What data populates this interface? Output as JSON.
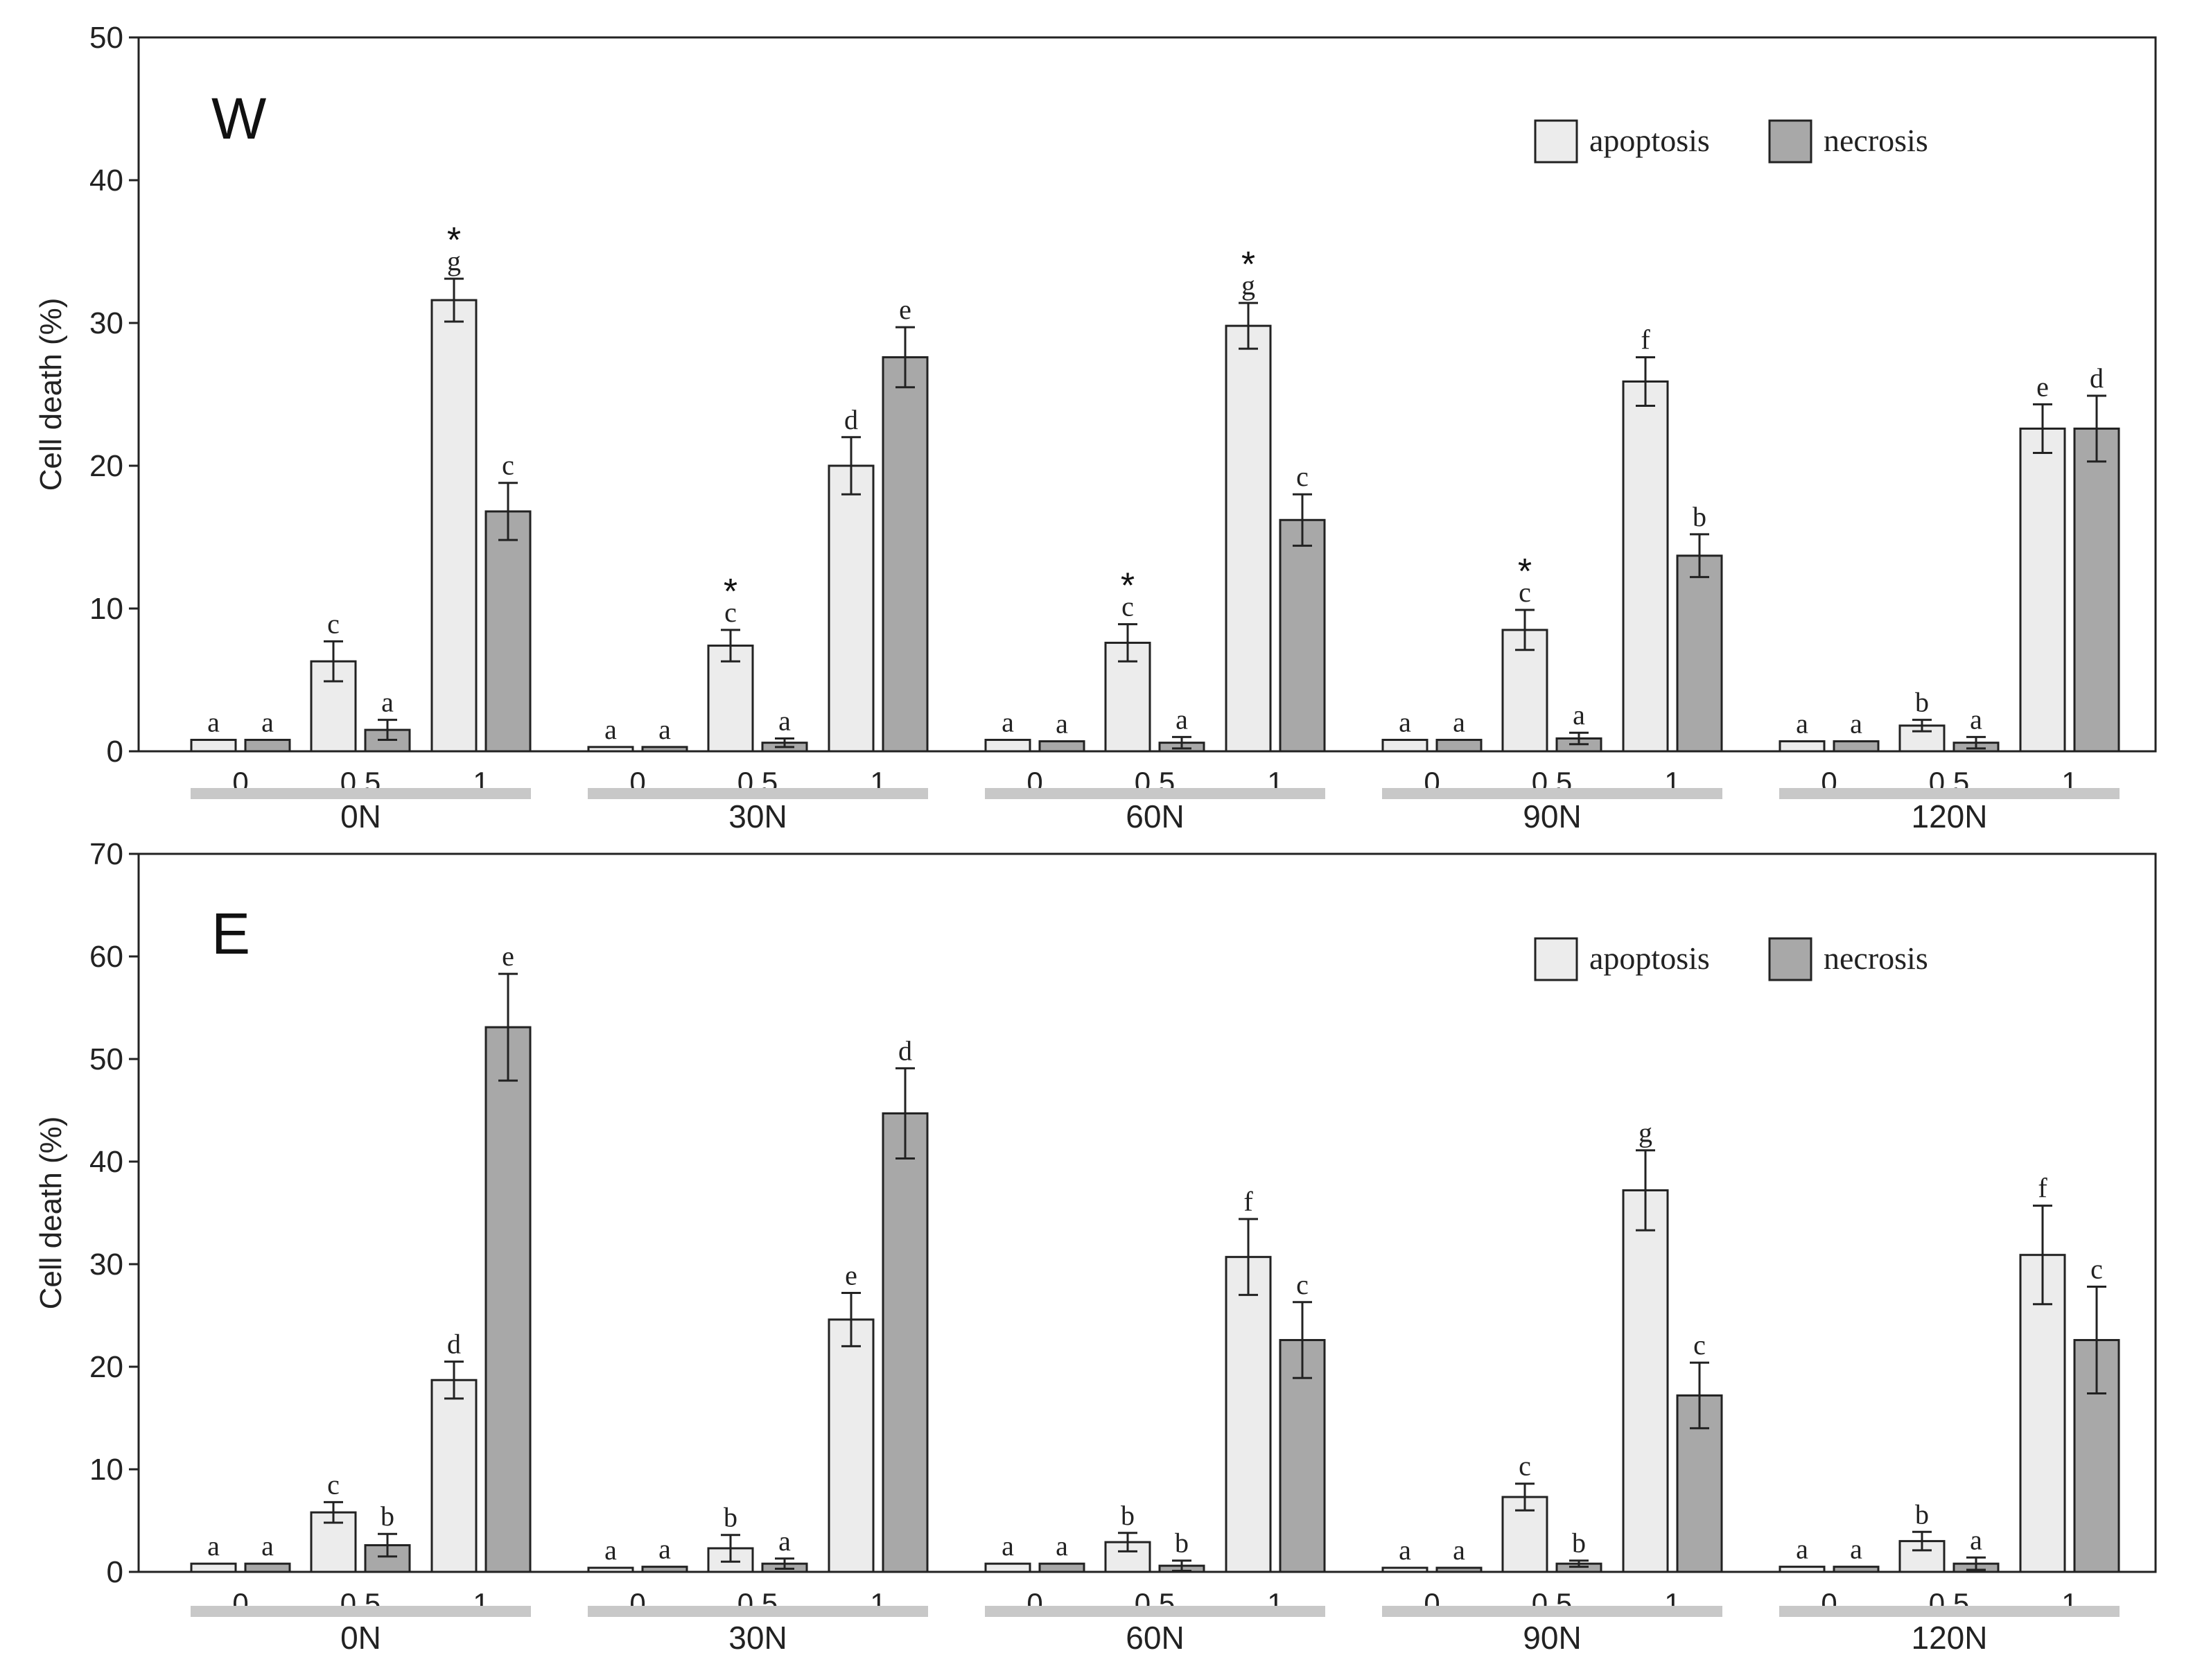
{
  "colors": {
    "apoptosis": "#ececec",
    "necrosis": "#a8a8a8",
    "axis": "#222222",
    "group_bar": "#c8c8c8"
  },
  "chart_data": [
    {
      "type": "bar",
      "panel_label": "W",
      "ylabel": "Cell death (%)",
      "ylim": [
        0,
        50
      ],
      "yticks": [
        "0",
        "10",
        "20",
        "30",
        "40",
        "50"
      ],
      "groups": [
        "0N",
        "30N",
        "60N",
        "90N",
        "120N"
      ],
      "subcategories": [
        "0",
        "0.5",
        "1"
      ],
      "legend": {
        "placement": "top-right",
        "entries": [
          "apoptosis",
          "necrosis"
        ]
      },
      "series": [
        {
          "name": "apoptosis",
          "values": [
            0.8,
            6.3,
            31.6,
            0.3,
            7.4,
            20.0,
            0.8,
            7.6,
            29.8,
            0.8,
            8.5,
            25.9,
            0.7,
            1.8,
            22.6
          ],
          "errors": [
            0,
            1.4,
            1.5,
            0,
            1.1,
            2.0,
            0,
            1.3,
            1.6,
            0,
            1.4,
            1.7,
            0,
            0.4,
            1.7
          ],
          "letters": [
            "a",
            "c",
            "g",
            "a",
            "c",
            "d",
            "a",
            "c",
            "g",
            "a",
            "c",
            "f",
            "a",
            "b",
            "e"
          ],
          "stars": [
            "",
            "",
            "*",
            "",
            "*",
            "",
            "",
            "*",
            "*",
            "",
            "*",
            "",
            "",
            "",
            ""
          ]
        },
        {
          "name": "necrosis",
          "values": [
            0.8,
            1.5,
            16.8,
            0.3,
            0.6,
            27.6,
            0.7,
            0.6,
            16.2,
            0.8,
            0.9,
            13.7,
            0.7,
            0.6,
            22.6
          ],
          "errors": [
            0,
            0.7,
            2.0,
            0,
            0.3,
            2.1,
            0,
            0.4,
            1.8,
            0,
            0.4,
            1.5,
            0,
            0.4,
            2.3
          ],
          "letters": [
            "a",
            "a",
            "c",
            "a",
            "a",
            "e",
            "a",
            "a",
            "c",
            "a",
            "a",
            "b",
            "a",
            "a",
            "d"
          ]
        }
      ]
    },
    {
      "type": "bar",
      "panel_label": "E",
      "ylabel": "Cell death (%)",
      "ylim": [
        0,
        70
      ],
      "yticks": [
        "0",
        "10",
        "20",
        "30",
        "40",
        "50",
        "60",
        "70"
      ],
      "groups": [
        "0N",
        "30N",
        "60N",
        "90N",
        "120N"
      ],
      "subcategories": [
        "0",
        "0.5",
        "1"
      ],
      "legend": {
        "placement": "top-right",
        "entries": [
          "apoptosis",
          "necrosis"
        ]
      },
      "series": [
        {
          "name": "apoptosis",
          "values": [
            0.8,
            5.8,
            18.7,
            0.4,
            2.3,
            24.6,
            0.8,
            2.9,
            30.7,
            0.4,
            7.3,
            37.2,
            0.5,
            3.0,
            30.9
          ],
          "errors": [
            0,
            1.0,
            1.8,
            0,
            1.3,
            2.6,
            0,
            0.9,
            3.7,
            0,
            1.3,
            3.9,
            0,
            0.9,
            4.8
          ],
          "letters": [
            "a",
            "c",
            "d",
            "a",
            "b",
            "e",
            "a",
            "b",
            "f",
            "a",
            "c",
            "g",
            "a",
            "b",
            "f"
          ]
        },
        {
          "name": "necrosis",
          "values": [
            0.8,
            2.6,
            53.1,
            0.5,
            0.8,
            44.7,
            0.8,
            0.6,
            22.6,
            0.4,
            0.8,
            17.2,
            0.5,
            0.8,
            22.6
          ],
          "errors": [
            0,
            1.1,
            5.2,
            0,
            0.5,
            4.4,
            0,
            0.5,
            3.7,
            0,
            0.3,
            3.2,
            0,
            0.6,
            5.2
          ],
          "letters": [
            "a",
            "b",
            "e",
            "a",
            "a",
            "d",
            "a",
            "b",
            "c",
            "a",
            "b",
            "c",
            "a",
            "a",
            "c"
          ]
        }
      ]
    }
  ]
}
